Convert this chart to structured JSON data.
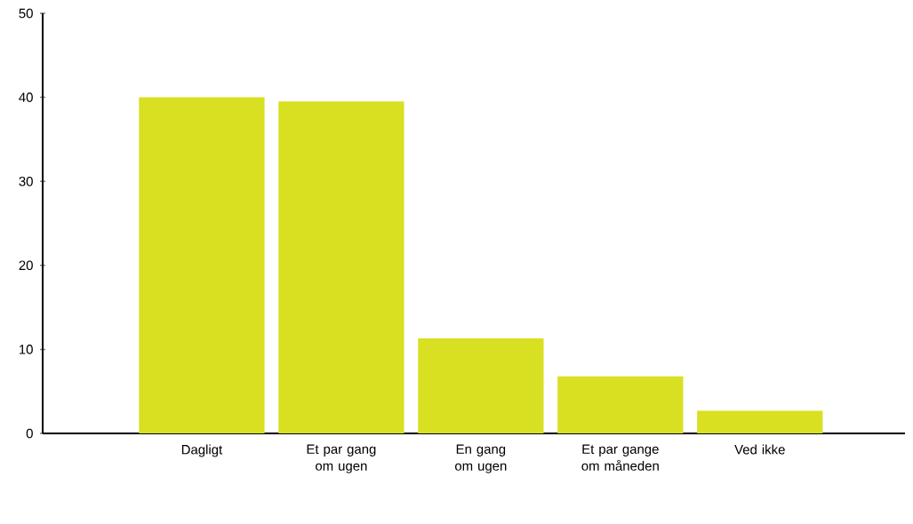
{
  "chart_data": {
    "type": "bar",
    "categories": [
      "Dagligt",
      "Et par gang om ugen",
      "En gang om ugen",
      "Et par gange om måneden",
      "Ved ikke"
    ],
    "values": [
      40,
      39.5,
      11.3,
      6.8,
      2.7
    ],
    "color": "#d8e021",
    "ylim": [
      0,
      50
    ],
    "yticks": [
      0,
      10,
      20,
      30,
      40,
      50
    ]
  }
}
